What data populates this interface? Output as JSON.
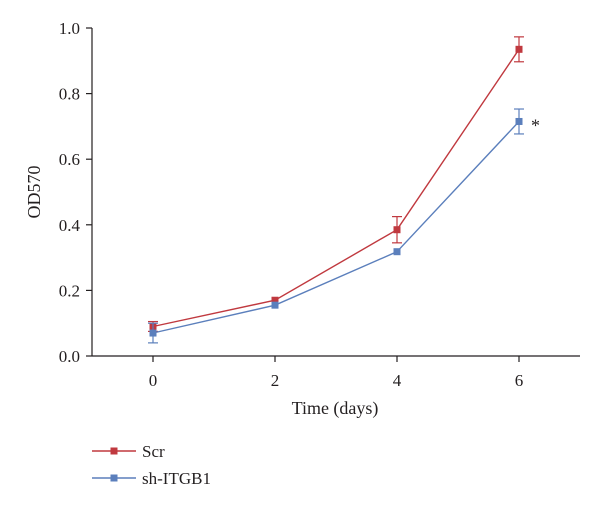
{
  "chart_data": {
    "type": "line",
    "title": "",
    "xlabel": "Time (days)",
    "ylabel": "OD570",
    "x": [
      0,
      2,
      4,
      6
    ],
    "xlim": [
      -1,
      7
    ],
    "ylim": [
      0,
      1.0
    ],
    "xticks": [
      "0",
      "2",
      "4",
      "6"
    ],
    "yticks": [
      "0.0",
      "0.2",
      "0.4",
      "0.6",
      "0.8",
      "1.0"
    ],
    "grid": false,
    "legend_position": "bottom-left",
    "series": [
      {
        "name": "Scr",
        "color": "#c0393f",
        "values": [
          0.09,
          0.17,
          0.385,
          0.935
        ],
        "errors": [
          0.015,
          0.0,
          0.04,
          0.038
        ]
      },
      {
        "name": "sh-ITGB1",
        "color": "#5b7fbc",
        "values": [
          0.07,
          0.155,
          0.318,
          0.715
        ],
        "errors": [
          0.03,
          0.0,
          0.0,
          0.038
        ]
      }
    ],
    "annotations": [
      {
        "text": "*",
        "x": 6,
        "y": 0.715
      }
    ]
  }
}
